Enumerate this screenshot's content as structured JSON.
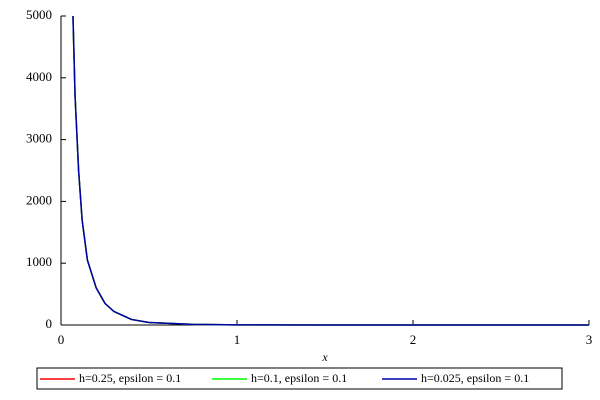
{
  "chart_data": {
    "type": "line",
    "x_label": "x",
    "x": [
      0.068,
      0.08,
      0.1,
      0.12,
      0.15,
      0.2,
      0.25,
      0.3,
      0.4,
      0.5,
      0.75,
      1,
      1.5,
      2,
      2.5,
      3
    ],
    "series": [
      {
        "name": "h=0.25, epsilon = 0.1",
        "color": "#ff0000",
        "values": [
          5000,
          3700,
          2500,
          1700,
          1050,
          600,
          350,
          220,
          90,
          40,
          10,
          3,
          1,
          0,
          0,
          0
        ]
      },
      {
        "name": "h=0.1, epsilon = 0.1",
        "color": "#00ff00",
        "values": [
          5000,
          3700,
          2500,
          1700,
          1050,
          600,
          350,
          220,
          90,
          40,
          10,
          3,
          1,
          0,
          0,
          0
        ]
      },
      {
        "name": "h=0.025, epsilon = 0.1",
        "color": "#0000aa",
        "values": [
          5000,
          3700,
          2500,
          1700,
          1050,
          600,
          350,
          220,
          90,
          40,
          10,
          3,
          1,
          0,
          0,
          0
        ]
      }
    ],
    "xlim": [
      0,
      3
    ],
    "ylim": [
      0,
      5000
    ],
    "xticks": [
      0,
      1,
      2,
      3
    ],
    "yticks": [
      0,
      1000,
      2000,
      3000,
      4000,
      5000
    ],
    "legend": "bottom"
  }
}
